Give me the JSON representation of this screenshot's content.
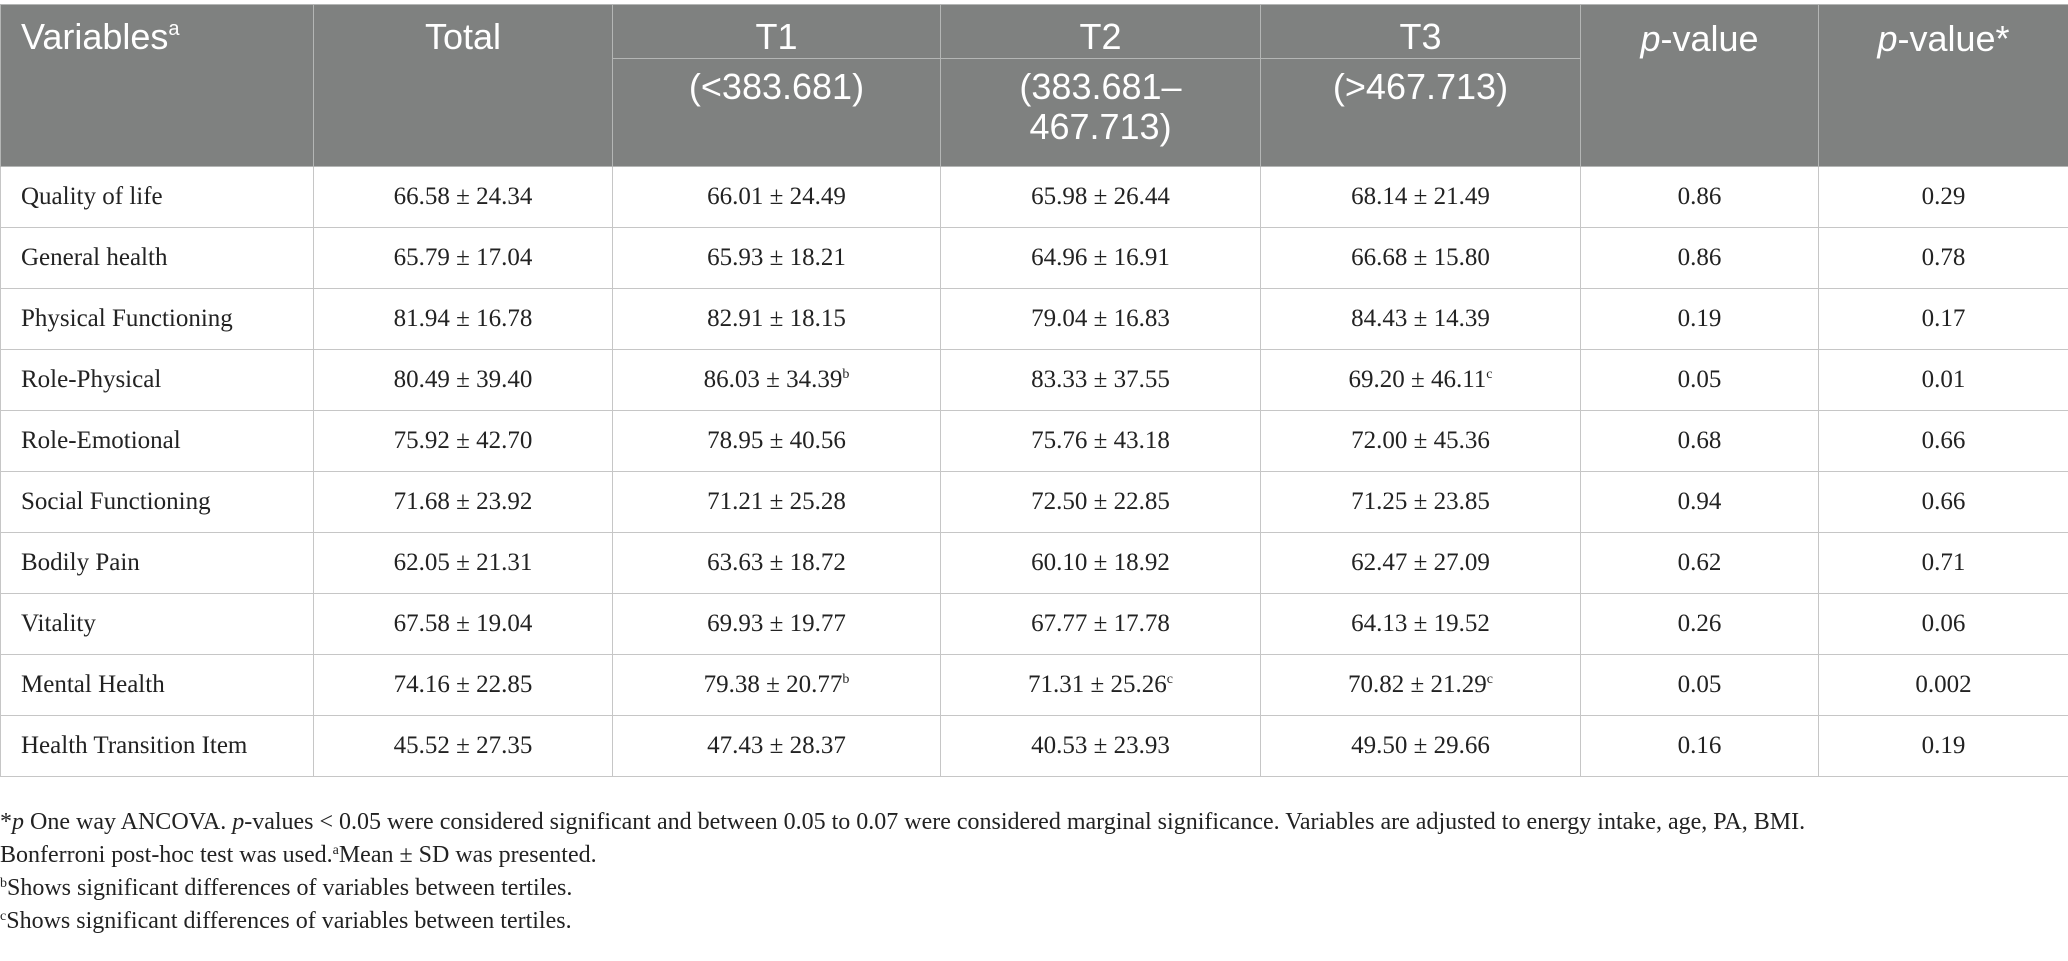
{
  "table": {
    "header": {
      "variables": "Variables",
      "variables_sup": "a",
      "total": "Total",
      "t1": "T1",
      "t1_range": "(<383.681)",
      "t2": "T2",
      "t2_range": "(383.681–467.713)",
      "t3": "T3",
      "t3_range": "(>467.713)",
      "p_italic": "p",
      "p_suffix": "-value",
      "p2_italic": "p",
      "p2_suffix": "-value*"
    },
    "rows": [
      {
        "variable": "Quality of life",
        "total": "66.58 ± 24.34",
        "t1": "66.01 ± 24.49",
        "t1_sup": "",
        "t2": "65.98 ± 26.44",
        "t2_sup": "",
        "t3": "68.14 ± 21.49",
        "t3_sup": "",
        "p": "0.86",
        "p_adj": "0.29"
      },
      {
        "variable": "General health",
        "total": "65.79 ± 17.04",
        "t1": "65.93 ± 18.21",
        "t1_sup": "",
        "t2": "64.96 ± 16.91",
        "t2_sup": "",
        "t3": "66.68 ± 15.80",
        "t3_sup": "",
        "p": "0.86",
        "p_adj": "0.78"
      },
      {
        "variable": "Physical Functioning",
        "total": "81.94 ± 16.78",
        "t1": "82.91 ± 18.15",
        "t1_sup": "",
        "t2": "79.04 ± 16.83",
        "t2_sup": "",
        "t3": "84.43 ± 14.39",
        "t3_sup": "",
        "p": "0.19",
        "p_adj": "0.17"
      },
      {
        "variable": "Role-Physical",
        "total": "80.49 ± 39.40",
        "t1": "86.03 ± 34.39",
        "t1_sup": "b",
        "t2": "83.33 ± 37.55",
        "t2_sup": "",
        "t3": "69.20 ± 46.11",
        "t3_sup": "c",
        "p": "0.05",
        "p_adj": "0.01"
      },
      {
        "variable": "Role-Emotional",
        "total": "75.92 ± 42.70",
        "t1": "78.95 ± 40.56",
        "t1_sup": "",
        "t2": "75.76 ± 43.18",
        "t2_sup": "",
        "t3": "72.00 ± 45.36",
        "t3_sup": "",
        "p": "0.68",
        "p_adj": "0.66"
      },
      {
        "variable": "Social Functioning",
        "total": "71.68 ± 23.92",
        "t1": "71.21 ± 25.28",
        "t1_sup": "",
        "t2": "72.50 ± 22.85",
        "t2_sup": "",
        "t3": "71.25 ± 23.85",
        "t3_sup": "",
        "p": "0.94",
        "p_adj": "0.66"
      },
      {
        "variable": "Bodily Pain",
        "total": "62.05 ± 21.31",
        "t1": "63.63 ± 18.72",
        "t1_sup": "",
        "t2": "60.10 ± 18.92",
        "t2_sup": "",
        "t3": "62.47 ± 27.09",
        "t3_sup": "",
        "p": "0.62",
        "p_adj": "0.71"
      },
      {
        "variable": "Vitality",
        "total": "67.58 ± 19.04",
        "t1": "69.93 ± 19.77",
        "t1_sup": "",
        "t2": "67.77 ± 17.78",
        "t2_sup": "",
        "t3": "64.13 ± 19.52",
        "t3_sup": "",
        "p": "0.26",
        "p_adj": "0.06"
      },
      {
        "variable": "Mental Health",
        "total": "74.16 ± 22.85",
        "t1": "79.38 ± 20.77",
        "t1_sup": "b",
        "t2": "71.31 ± 25.26",
        "t2_sup": "c",
        "t3": "70.82 ± 21.29",
        "t3_sup": "c",
        "p": "0.05",
        "p_adj": "0.002"
      },
      {
        "variable": "Health Transition Item",
        "total": "45.52 ± 27.35",
        "t1": "47.43 ± 28.37",
        "t1_sup": "",
        "t2": "40.53 ± 23.93",
        "t2_sup": "",
        "t3": "49.50 ± 29.66",
        "t3_sup": "",
        "p": "0.16",
        "p_adj": "0.19"
      }
    ]
  },
  "notes": {
    "line1": {
      "star": "*",
      "p1": "p",
      "text1": " One way ANCOVA. ",
      "p2": "p",
      "text2": "-values < 0.05 were considered significant and between 0.05 to 0.07 were considered marginal significance. Variables are adjusted to energy intake, age, PA, BMI."
    },
    "line2": {
      "text": "Bonferroni post-hoc test was used.",
      "sup": "a",
      "text2": "Mean ± SD was presented."
    },
    "line3": {
      "sup": "b",
      "text": "Shows significant differences of variables between tertiles."
    },
    "line4": {
      "sup": "c",
      "text": "Shows significant differences of variables between tertiles."
    }
  }
}
